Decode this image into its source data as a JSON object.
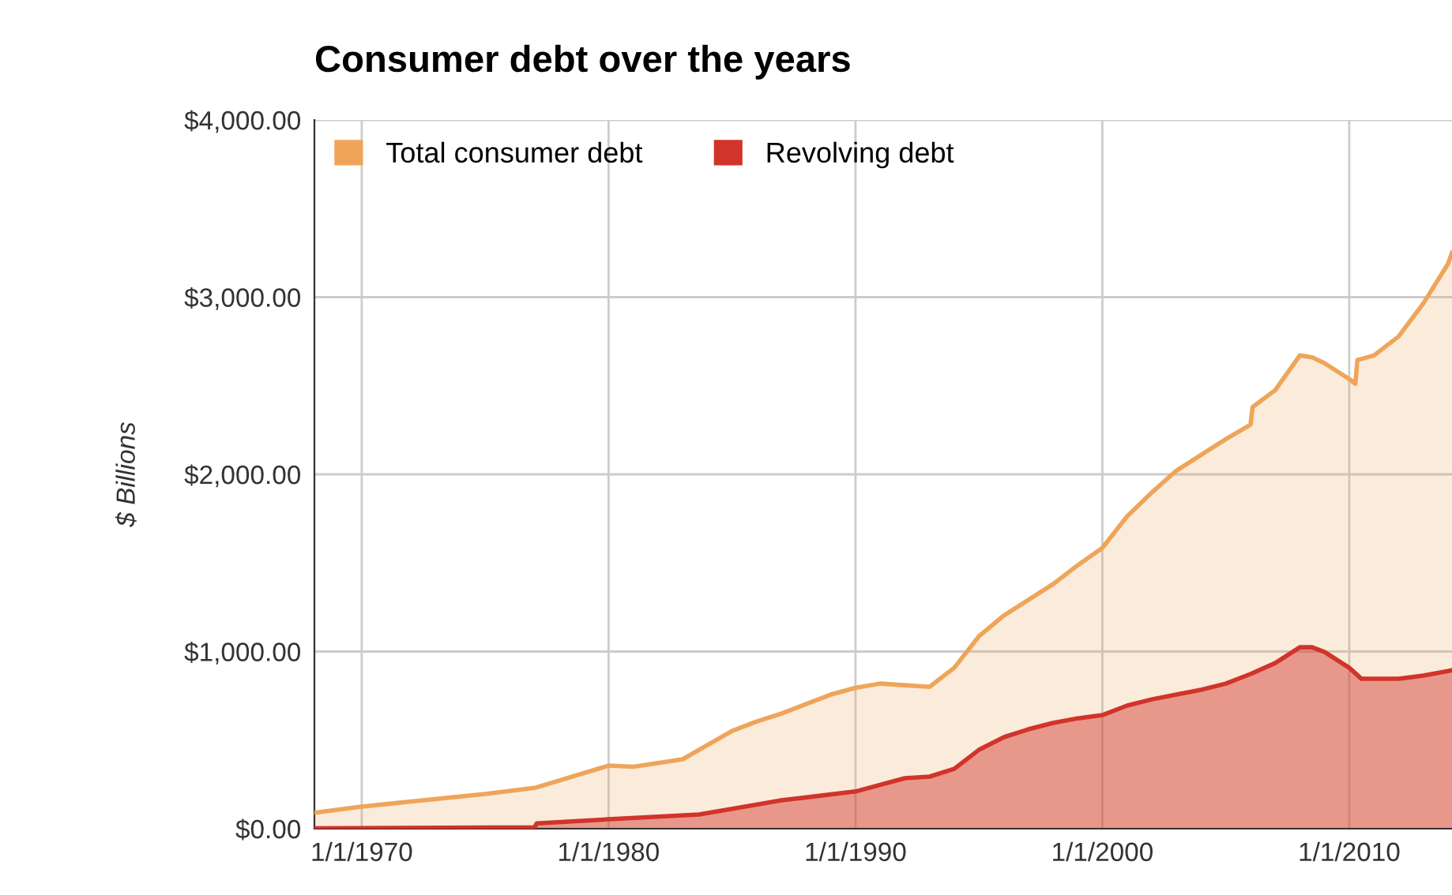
{
  "chart_data": {
    "type": "area",
    "title": "Consumer debt over the years",
    "ylabel": "$ Billions",
    "xlim": [
      "1968-02",
      "2014-03"
    ],
    "xticks": [
      {
        "value": "1970-01-01",
        "label": "1/1/1970"
      },
      {
        "value": "1980-01-01",
        "label": "1/1/1980"
      },
      {
        "value": "1990-01-01",
        "label": "1/1/1990"
      },
      {
        "value": "2000-01-01",
        "label": "1/1/2000"
      },
      {
        "value": "2010-01-01",
        "label": "1/1/2010"
      }
    ],
    "ylim": [
      0,
      4000
    ],
    "yticks": [
      {
        "value": 0,
        "label": "$0.00"
      },
      {
        "value": 1000,
        "label": "$1,000.00"
      },
      {
        "value": 2000,
        "label": "$2,000.00"
      },
      {
        "value": 3000,
        "label": "$3,000.00"
      },
      {
        "value": 4000,
        "label": "$4,000.00"
      }
    ],
    "grid": true,
    "legend": "top left",
    "series": [
      {
        "name": "Total consumer debt",
        "color": "#eea55a",
        "x": [
          "1968-02",
          "1970-01",
          "1975-01",
          "1977-01",
          "1980-01",
          "1981-01",
          "1983-01",
          "1985-01",
          "1986-01",
          "1987-01",
          "1989-01",
          "1990-01",
          "1991-01",
          "1993-01",
          "1994-01",
          "1995-01",
          "1996-01",
          "1997-01",
          "1998-01",
          "1999-01",
          "2000-01",
          "2001-01",
          "2002-01",
          "2003-01",
          "2004-01",
          "2005-01",
          "2006-01",
          "2006-02",
          "2007-01",
          "2008-01",
          "2008-07",
          "2009-01",
          "2010-01",
          "2010-04",
          "2010-05",
          "2011-01",
          "2012-01",
          "2013-01",
          "2014-01",
          "2014-03"
        ],
        "values": [
          90,
          125,
          196,
          230,
          356,
          350,
          392,
          552,
          605,
          650,
          757,
          795,
          819,
          801,
          908,
          1086,
          1202,
          1291,
          1380,
          1487,
          1585,
          1763,
          1897,
          2021,
          2110,
          2199,
          2280,
          2380,
          2475,
          2671,
          2660,
          2627,
          2538,
          2511,
          2645,
          2671,
          2778,
          2965,
          3188,
          3250
        ]
      },
      {
        "name": "Revolving debt",
        "color": "#d0342a",
        "x": [
          "1968-02",
          "1977-01",
          "1977-02",
          "1980-01",
          "1983-09",
          "1987-01",
          "1990-01",
          "1992-01",
          "1993-01",
          "1994-01",
          "1995-01",
          "1996-01",
          "1997-01",
          "1998-01",
          "1999-01",
          "2000-01",
          "2001-01",
          "2002-01",
          "2003-01",
          "2004-01",
          "2005-01",
          "2006-01",
          "2007-01",
          "2008-01",
          "2008-07",
          "2009-01",
          "2010-01",
          "2010-07",
          "2012-01",
          "2013-01",
          "2014-01",
          "2014-03"
        ],
        "values": [
          2,
          8,
          30,
          53,
          80,
          160,
          210,
          285,
          294,
          338,
          445,
          516,
          561,
          597,
          623,
          641,
          695,
          730,
          757,
          784,
          819,
          873,
          935,
          1024,
          1024,
          997,
          908,
          846,
          846,
          864,
          890,
          895
        ]
      }
    ]
  }
}
